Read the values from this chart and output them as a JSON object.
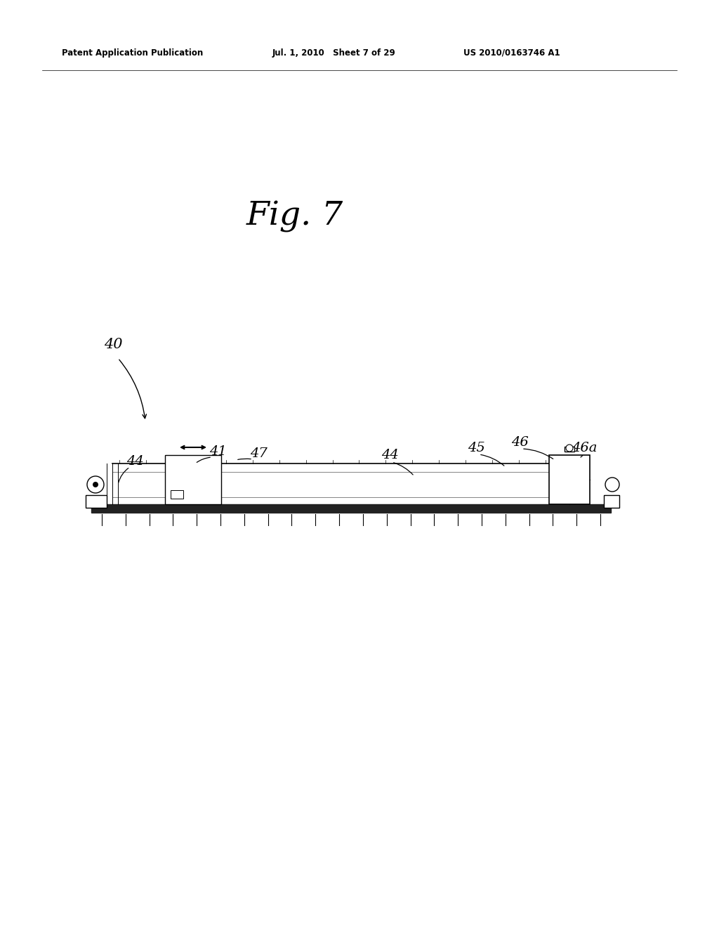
{
  "background_color": "#ffffff",
  "fig_width": 10.24,
  "fig_height": 13.2,
  "header_left": "Patent Application Publication",
  "header_mid": "Jul. 1, 2010   Sheet 7 of 29",
  "header_right": "US 2010/0163746 A1",
  "fig_label": "Fig. 7",
  "label_40": "40",
  "label_41": "41",
  "label_44a": "44",
  "label_44b": "44",
  "label_45": "45",
  "label_46": "46",
  "label_46a": "46a",
  "label_47": "47"
}
